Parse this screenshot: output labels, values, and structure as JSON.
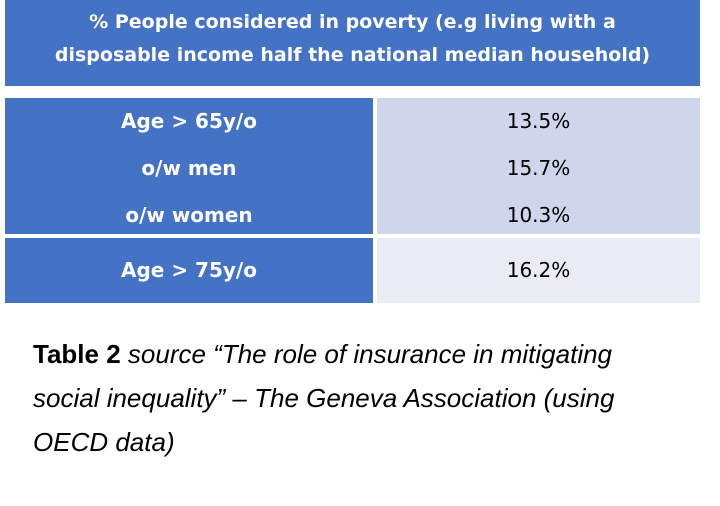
{
  "table": {
    "header_line1": "% People considered in poverty (e.g living with a",
    "header_line2": "disposable income half the national median household)",
    "group1": {
      "labels": [
        "Age > 65y/o",
        "o/w men",
        "o/w women"
      ],
      "values": [
        "13.5%",
        "15.7%",
        "10.3%"
      ]
    },
    "group2": {
      "label": "Age > 75y/o",
      "value": "16.2%"
    }
  },
  "caption": {
    "lead": "Table 2",
    "text": " source “The role of insurance in mitigating social inequality” – The Geneva Association (using OECD data)"
  },
  "colors": {
    "header_blue": "#4472c4",
    "value_light1": "#cfd5ea",
    "value_light2": "#e9ebf5"
  }
}
